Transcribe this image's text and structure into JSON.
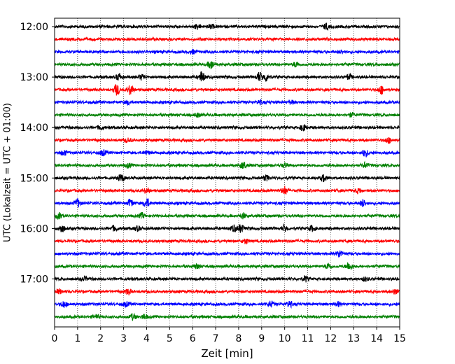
{
  "chart_data": {
    "type": "line",
    "title": "",
    "xlabel": "Zeit  [min]",
    "ylabel": "UTC (Lokalzeit = UTC + 01:00)",
    "xlim": [
      0,
      15
    ],
    "xticks": [
      "0",
      "1",
      "2",
      "3",
      "4",
      "5",
      "6",
      "7",
      "8",
      "9",
      "10",
      "11",
      "12",
      "13",
      "14",
      "15"
    ],
    "ylim_minutes_utc": [
      710,
      1077
    ],
    "yticks": [
      {
        "label": "12:00",
        "minutes": 720
      },
      {
        "label": "13:00",
        "minutes": 780
      },
      {
        "label": "14:00",
        "minutes": 840
      },
      {
        "label": "15:00",
        "minutes": 900
      },
      {
        "label": "16:00",
        "minutes": 960
      },
      {
        "label": "17:00",
        "minutes": 1020
      }
    ],
    "trace_interval_min": 15,
    "trace_colors": [
      "#000000",
      "#ff0000",
      "#0000ff",
      "#008000"
    ],
    "grid": "vertical dotted lines at each minute",
    "traces": [
      {
        "start": "12:00",
        "color": "#000000",
        "bursts": [
          [
            6.2,
            0.7
          ],
          [
            6.8,
            0.6
          ],
          [
            11.8,
            0.9
          ]
        ]
      },
      {
        "start": "12:15",
        "color": "#ff0000",
        "bursts": []
      },
      {
        "start": "12:30",
        "color": "#0000ff",
        "bursts": [
          [
            6.0,
            0.6
          ],
          [
            12.5,
            0.5
          ]
        ]
      },
      {
        "start": "12:45",
        "color": "#008000",
        "bursts": [
          [
            6.8,
            1.4
          ],
          [
            10.5,
            0.8
          ]
        ]
      },
      {
        "start": "13:00",
        "color": "#000000",
        "bursts": [
          [
            2.8,
            1.1
          ],
          [
            3.8,
            0.9
          ],
          [
            6.4,
            1.8
          ],
          [
            8.9,
            1.5
          ],
          [
            9.2,
            1.2
          ],
          [
            12.8,
            0.8
          ]
        ]
      },
      {
        "start": "13:15",
        "color": "#ff0000",
        "bursts": [
          [
            2.7,
            1.8
          ],
          [
            3.3,
            1.6
          ],
          [
            14.2,
            1.3
          ]
        ]
      },
      {
        "start": "13:30",
        "color": "#0000ff",
        "bursts": [
          [
            3.2,
            0.6
          ],
          [
            8.9,
            0.6
          ],
          [
            10.3,
            0.5
          ]
        ]
      },
      {
        "start": "13:45",
        "color": "#008000",
        "bursts": [
          [
            6.2,
            0.6
          ],
          [
            12.9,
            0.6
          ]
        ]
      },
      {
        "start": "14:00",
        "color": "#000000",
        "bursts": [
          [
            2.0,
            0.7
          ],
          [
            10.8,
            1.0
          ]
        ]
      },
      {
        "start": "14:15",
        "color": "#ff0000",
        "bursts": [
          [
            3.2,
            0.6
          ],
          [
            14.5,
            0.9
          ]
        ]
      },
      {
        "start": "14:30",
        "color": "#0000ff",
        "bursts": [
          [
            0.4,
            0.9
          ],
          [
            2.1,
            0.9
          ],
          [
            4.0,
            0.6
          ],
          [
            13.5,
            1.2
          ]
        ]
      },
      {
        "start": "14:45",
        "color": "#008000",
        "bursts": [
          [
            3.2,
            0.7
          ],
          [
            8.2,
            1.1
          ],
          [
            10.0,
            0.7
          ],
          [
            13.5,
            0.8
          ]
        ]
      },
      {
        "start": "15:00",
        "color": "#000000",
        "bursts": [
          [
            2.9,
            1.2
          ],
          [
            9.2,
            0.8
          ],
          [
            11.7,
            1.1
          ]
        ]
      },
      {
        "start": "15:15",
        "color": "#ff0000",
        "bursts": [
          [
            4.0,
            0.8
          ],
          [
            10.0,
            1.3
          ],
          [
            13.2,
            0.7
          ]
        ]
      },
      {
        "start": "15:30",
        "color": "#0000ff",
        "bursts": [
          [
            1.0,
            1.3
          ],
          [
            3.3,
            1.3
          ],
          [
            4.0,
            1.5
          ],
          [
            13.4,
            1.1
          ]
        ]
      },
      {
        "start": "15:45",
        "color": "#008000",
        "bursts": [
          [
            0.2,
            0.9
          ],
          [
            3.8,
            0.8
          ],
          [
            8.2,
            0.8
          ]
        ]
      },
      {
        "start": "16:00",
        "color": "#000000",
        "bursts": [
          [
            0.3,
            1.3
          ],
          [
            2.6,
            0.8
          ],
          [
            3.6,
            0.7
          ],
          [
            7.8,
            1.0
          ],
          [
            8.1,
            1.3
          ],
          [
            10.0,
            1.0
          ],
          [
            11.2,
            0.9
          ]
        ]
      },
      {
        "start": "16:15",
        "color": "#ff0000",
        "bursts": [
          [
            8.3,
            0.8
          ]
        ]
      },
      {
        "start": "16:30",
        "color": "#0000ff",
        "bursts": [
          [
            12.4,
            1.2
          ]
        ]
      },
      {
        "start": "16:45",
        "color": "#008000",
        "bursts": [
          [
            6.2,
            0.7
          ],
          [
            11.9,
            1.0
          ],
          [
            12.8,
            1.4
          ]
        ]
      },
      {
        "start": "17:00",
        "color": "#000000",
        "bursts": [
          [
            1.3,
            0.6
          ],
          [
            10.9,
            0.9
          ],
          [
            13.5,
            0.6
          ]
        ]
      },
      {
        "start": "17:15",
        "color": "#ff0000",
        "bursts": [
          [
            0.2,
            0.7
          ],
          [
            3.2,
            0.9
          ],
          [
            14.8,
            0.8
          ]
        ]
      },
      {
        "start": "17:30",
        "color": "#0000ff",
        "bursts": [
          [
            0.4,
            1.0
          ],
          [
            3.1,
            0.7
          ],
          [
            9.4,
            0.9
          ],
          [
            10.2,
            1.0
          ],
          [
            12.3,
            0.7
          ]
        ]
      },
      {
        "start": "17:45",
        "color": "#008000",
        "bursts": [
          [
            1.8,
            0.6
          ],
          [
            3.4,
            0.9
          ],
          [
            3.9,
            0.8
          ]
        ]
      }
    ]
  }
}
